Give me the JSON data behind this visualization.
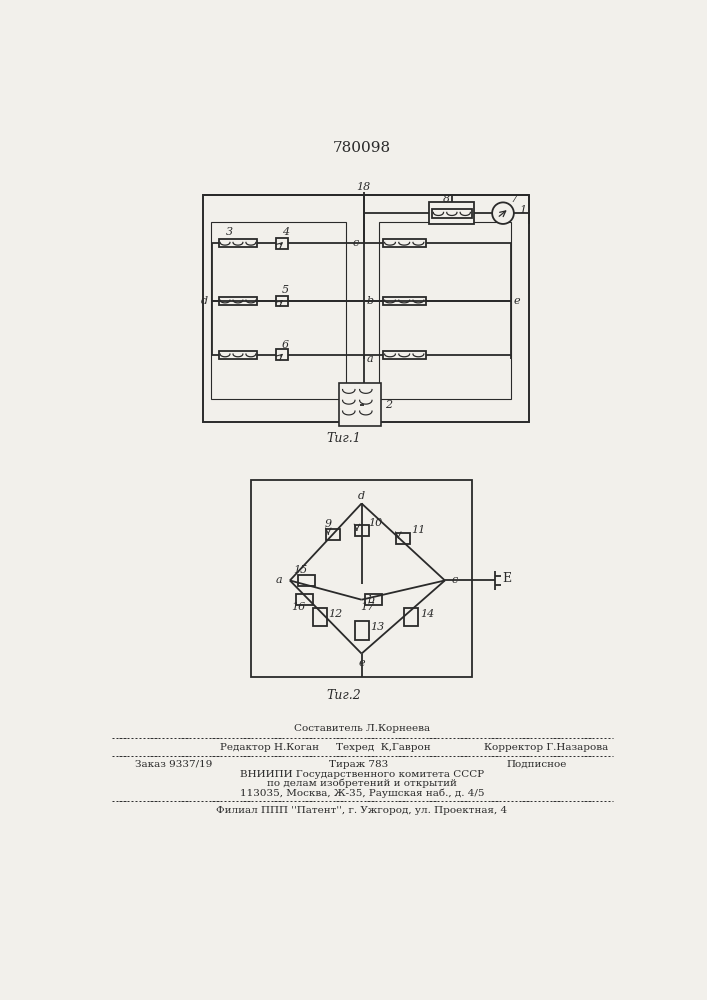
{
  "patent_number": "780098",
  "fig1_caption": "Τиг.1",
  "fig2_caption": "Τиг.2",
  "bg_color": "#f2f0eb",
  "line_color": "#2a2a2a",
  "lw": 1.3
}
